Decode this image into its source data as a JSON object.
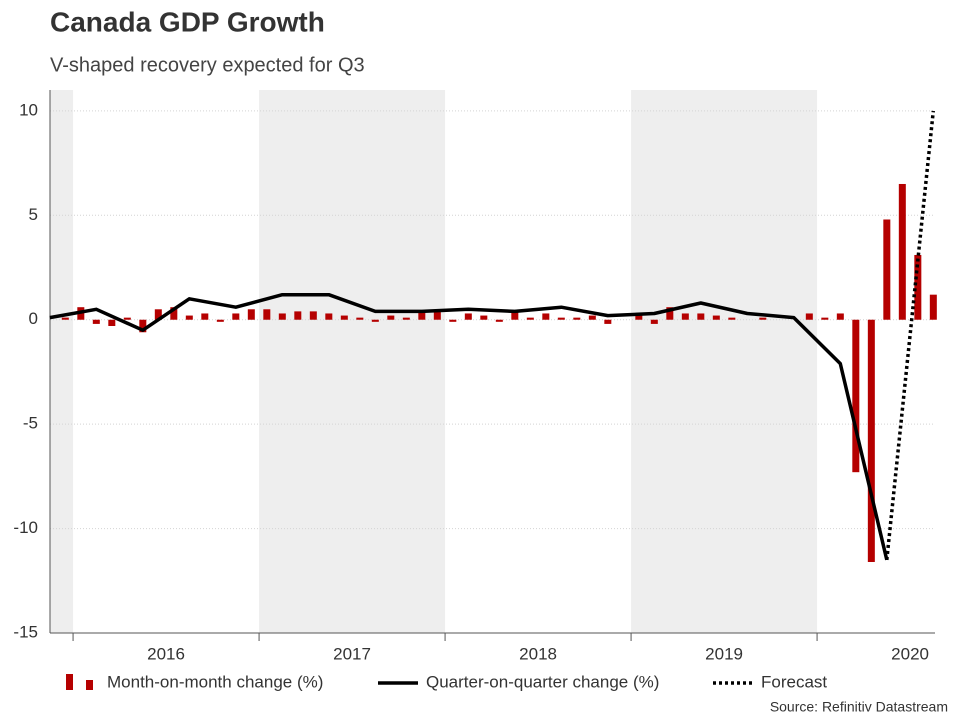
{
  "chart_data": {
    "type": "bar",
    "title": "Canada GDP Growth",
    "subtitle": "V-shaped recovery expected for Q3",
    "source": "Source: Refinitiv Datastream",
    "xlim": [
      2015.876,
      2020.634
    ],
    "xticks": [
      {
        "value": 2016.5,
        "label": "2016"
      },
      {
        "value": 2017.5,
        "label": "2017"
      },
      {
        "value": 2018.5,
        "label": "2018"
      },
      {
        "value": 2019.5,
        "label": "2019"
      },
      {
        "value": 2020.5,
        "label": "2020"
      }
    ],
    "ylim": [
      -15,
      11
    ],
    "yticks": [
      -15,
      -10,
      -5,
      0,
      5,
      10
    ],
    "grid": true,
    "series": [
      {
        "name": "Month-on-month change (%)",
        "type": "bar",
        "color": "#b50000",
        "x": [
          2015.9583,
          2016.0417,
          2016.125,
          2016.2083,
          2016.2917,
          2016.375,
          2016.4583,
          2016.5417,
          2016.625,
          2016.7083,
          2016.7917,
          2016.875,
          2016.9583,
          2017.0417,
          2017.125,
          2017.2083,
          2017.2917,
          2017.375,
          2017.4583,
          2017.5417,
          2017.625,
          2017.7083,
          2017.7917,
          2017.875,
          2017.9583,
          2018.0417,
          2018.125,
          2018.2083,
          2018.2917,
          2018.375,
          2018.4583,
          2018.5417,
          2018.625,
          2018.7083,
          2018.7917,
          2018.875,
          2018.9583,
          2019.0417,
          2019.125,
          2019.2083,
          2019.2917,
          2019.375,
          2019.4583,
          2019.5417,
          2019.625,
          2019.7083,
          2019.7917,
          2019.875,
          2019.9583,
          2020.0417,
          2020.125,
          2020.2083,
          2020.2917,
          2020.375,
          2020.4583,
          2020.5417,
          2020.625
        ],
        "values": [
          0.1,
          0.6,
          -0.2,
          -0.3,
          0.1,
          -0.6,
          0.5,
          0.6,
          0.2,
          0.3,
          -0.1,
          0.3,
          0.5,
          0.5,
          0.3,
          0.4,
          0.4,
          0.3,
          0.2,
          0.1,
          -0.1,
          0.2,
          0.1,
          0.4,
          0.4,
          -0.1,
          0.3,
          0.2,
          -0.1,
          0.4,
          0.1,
          0.3,
          0.1,
          0.1,
          0.2,
          -0.2,
          0.0,
          0.3,
          -0.2,
          0.6,
          0.3,
          0.3,
          0.2,
          0.1,
          0.0,
          0.1,
          0.0,
          0.0,
          0.3,
          0.1,
          0.3,
          -7.3,
          -11.6,
          4.8,
          6.5,
          3.1,
          1.2
        ]
      },
      {
        "name": "Quarter-on-quarter change (%)",
        "type": "line",
        "color": "#000000",
        "dash": "solid",
        "x": [
          2015.875,
          2016.125,
          2016.375,
          2016.625,
          2016.875,
          2017.125,
          2017.375,
          2017.625,
          2017.875,
          2018.125,
          2018.375,
          2018.625,
          2018.875,
          2019.125,
          2019.375,
          2019.625,
          2019.875,
          2020.125,
          2020.375
        ],
        "values": [
          0.1,
          0.5,
          -0.5,
          1.0,
          0.6,
          1.2,
          1.2,
          0.4,
          0.4,
          0.5,
          0.4,
          0.6,
          0.2,
          0.3,
          0.8,
          0.3,
          0.1,
          -2.1,
          -11.5
        ]
      },
      {
        "name": "Forecast",
        "type": "line",
        "color": "#000000",
        "dash": "dotted",
        "x": [
          2020.375,
          2020.625
        ],
        "values": [
          -11.5,
          10
        ]
      }
    ]
  }
}
